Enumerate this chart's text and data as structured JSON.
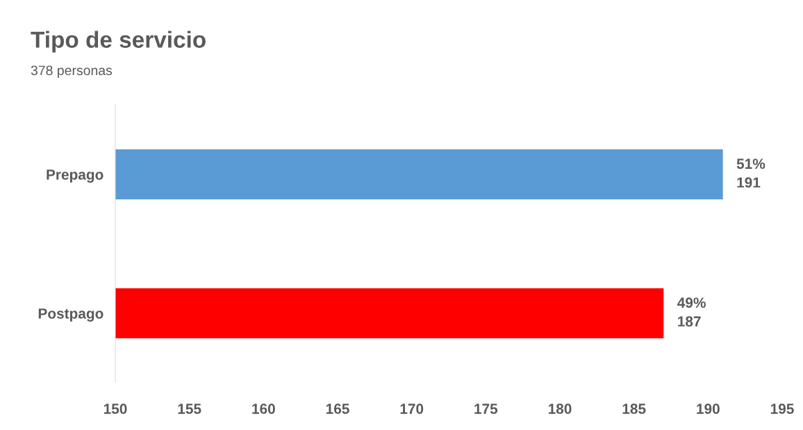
{
  "chart_data": {
    "type": "bar",
    "orientation": "horizontal",
    "title": "Tipo de servicio",
    "subtitle": "378 personas",
    "categories": [
      "Prepago",
      "Postpago"
    ],
    "values": [
      191,
      187
    ],
    "colors": [
      "#5b9bd5",
      "#ff0000"
    ],
    "value_labels": [
      "51%\n191",
      "49%\n187"
    ],
    "xlim": [
      150,
      195
    ],
    "xticks": [
      150,
      155,
      160,
      165,
      170,
      175,
      180,
      185,
      190,
      195
    ],
    "grid": false,
    "legend": false
  }
}
